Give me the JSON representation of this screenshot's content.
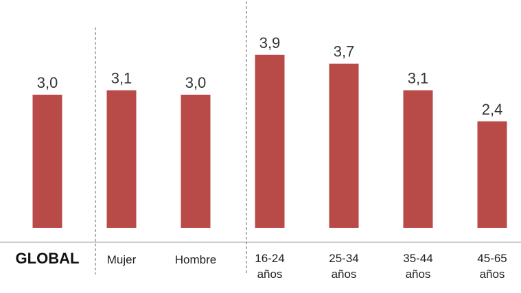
{
  "chart_data": {
    "type": "bar",
    "categories": [
      [
        "GLOBAL"
      ],
      [
        "Mujer"
      ],
      [
        "Hombre"
      ],
      [
        "16-24",
        "años"
      ],
      [
        "25-34",
        "años"
      ],
      [
        "35-44",
        "años"
      ],
      [
        "45-65",
        "años"
      ]
    ],
    "values": [
      3.0,
      3.1,
      3.0,
      3.9,
      3.7,
      3.1,
      2.4
    ],
    "value_labels": [
      "3,0",
      "3,1",
      "3,0",
      "3,9",
      "3,7",
      "3,1",
      "2,4"
    ],
    "bold_categories": [
      0
    ],
    "groups": [
      {
        "members": [
          0
        ]
      },
      {
        "members": [
          1,
          2
        ]
      },
      {
        "members": [
          3,
          4,
          5,
          6
        ]
      }
    ],
    "bar_color": "#b84a47",
    "ylim": [
      0,
      4.3
    ],
    "grid": false,
    "legend": "none"
  }
}
